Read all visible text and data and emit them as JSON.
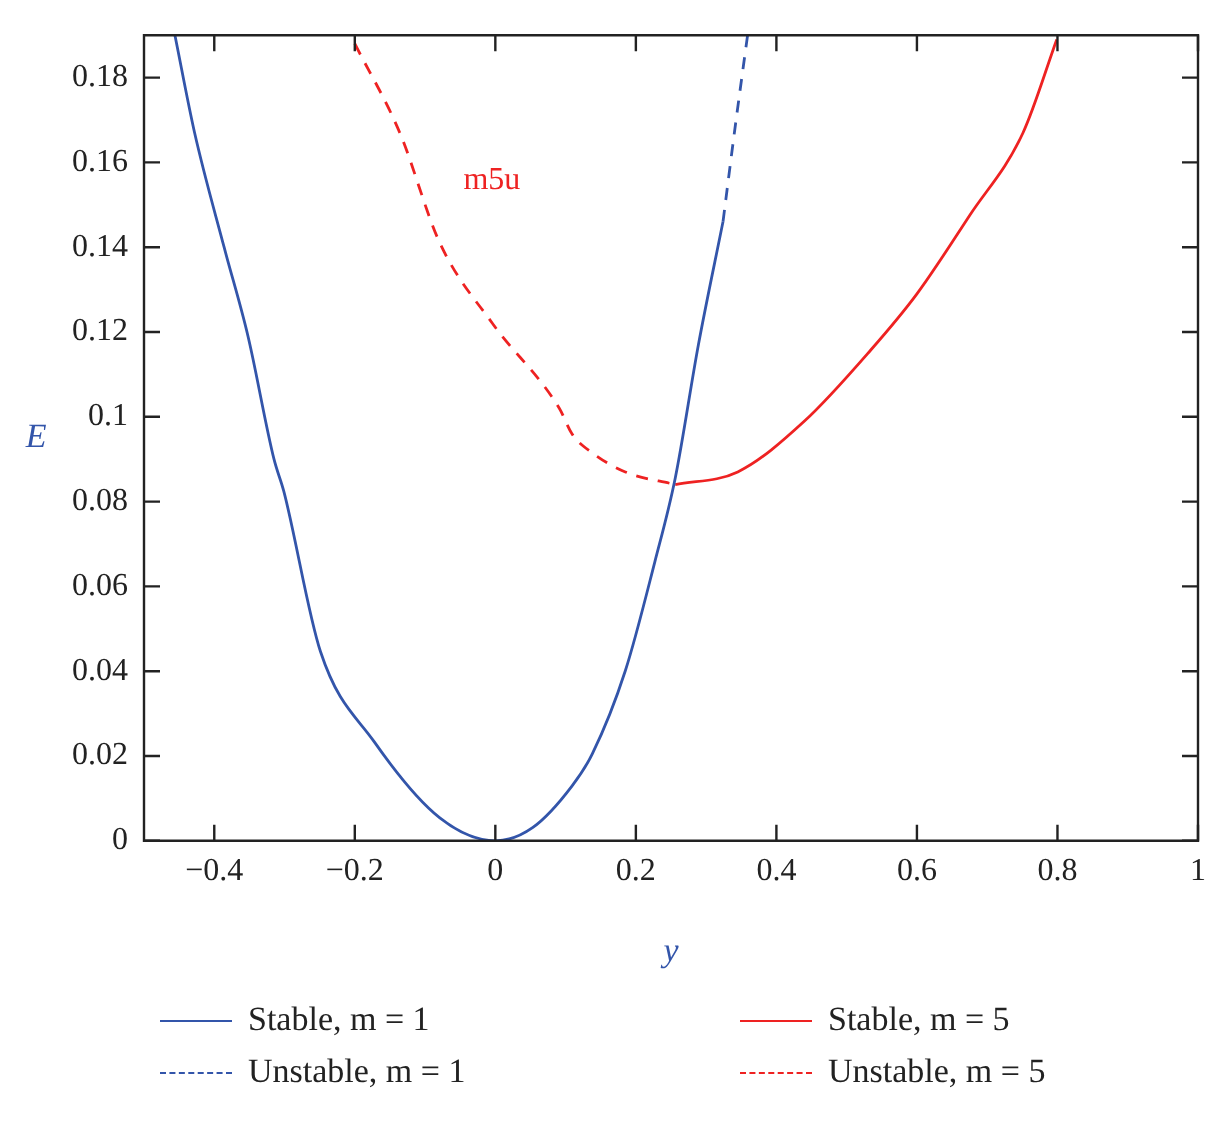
{
  "chart_data": {
    "type": "line",
    "xlabel": "y",
    "ylabel": "E",
    "xlim": [
      -0.5,
      1.0
    ],
    "ylim": [
      0,
      0.19
    ],
    "xticks": [
      {
        "value": -0.4,
        "label": "−0.4"
      },
      {
        "value": -0.2,
        "label": "−0.2"
      },
      0,
      0.2,
      0.4,
      0.6,
      0.8,
      1
    ],
    "yticks": [
      0,
      0.02,
      0.04,
      0.06,
      0.08,
      0.1,
      0.12,
      0.14,
      0.16,
      0.18
    ],
    "grid": false,
    "legend": "bottom",
    "marker": "none",
    "annotations": [
      "m5u"
    ],
    "series": [
      {
        "name": "Stable, m = 1",
        "color": "#3355aa",
        "line_style": "solid",
        "x": [
          -0.456,
          -0.428,
          -0.386,
          -0.352,
          -0.315,
          -0.301,
          -0.249,
          -0.173,
          -0.079,
          0,
          0.053,
          0.109,
          0.138,
          0.185,
          0.227,
          0.256,
          0.289,
          0.324
        ],
        "values": [
          0.19,
          0.167,
          0.14,
          0.119,
          0.09,
          0.0824,
          0.0447,
          0.0235,
          0.0054,
          0,
          0.0031,
          0.0129,
          0.0205,
          0.0401,
          0.0658,
          0.0855,
          0.117,
          0.146
        ]
      },
      {
        "name": "Unstable, m = 1",
        "color": "#3355aa",
        "line_style": "dashed",
        "x": [
          0.324,
          0.341,
          0.359
        ],
        "values": [
          0.146,
          0.168,
          0.19
        ]
      },
      {
        "name": "Stable, m = 5",
        "color": "#ee2222",
        "line_style": "solid",
        "x": [
          0.256,
          0.345,
          0.44,
          0.534,
          0.6,
          0.675,
          0.751,
          0.799
        ],
        "values": [
          0.084,
          0.087,
          0.099,
          0.1157,
          0.129,
          0.1475,
          0.167,
          0.189
        ]
      },
      {
        "name": "Unstable, m = 5",
        "color": "#ee2222",
        "line_style": "dashed",
        "x": [
          -0.2,
          -0.136,
          -0.079,
          -0.004,
          0.091,
          0.109,
          0.138,
          0.185,
          0.256
        ],
        "values": [
          0.188,
          0.167,
          0.141,
          0.122,
          0.102,
          0.096,
          0.0915,
          0.087,
          0.084
        ]
      }
    ]
  }
}
